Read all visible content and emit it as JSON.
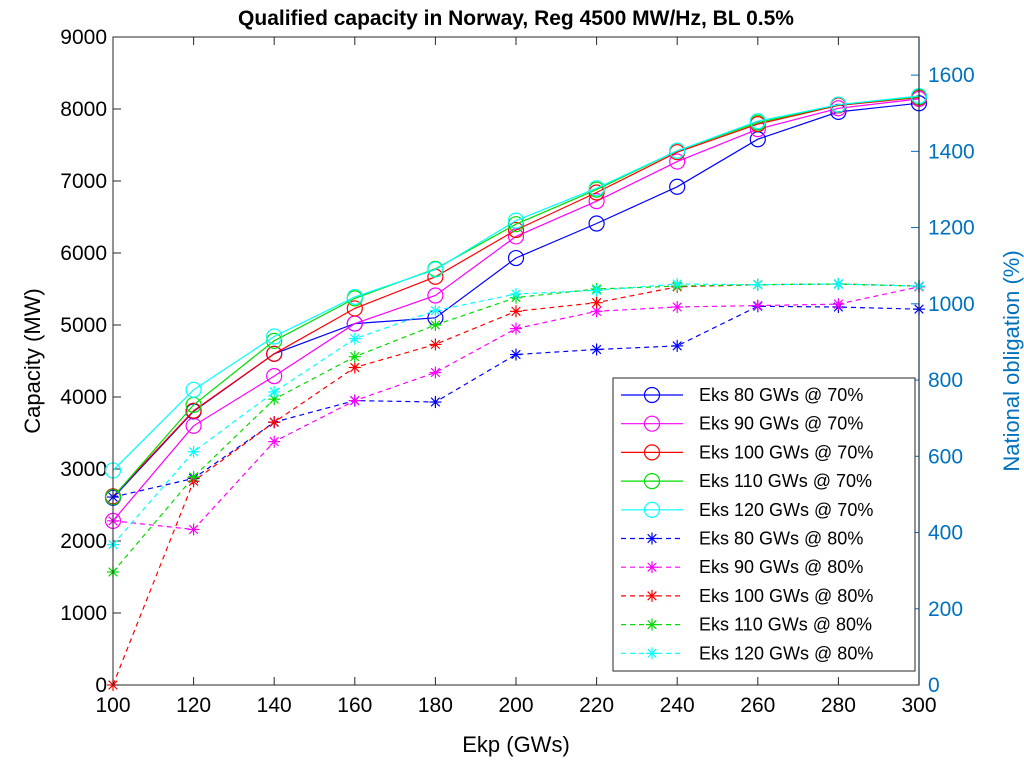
{
  "chart_data": {
    "type": "line",
    "title": "Qualified capacity in Norway, Reg 4500 MW/Hz, BL 0.5%",
    "xlabel": "Ekp (GWs)",
    "ylabel": "Capacity (MW)",
    "ylabel_right": "National obligation (%)",
    "xlim": [
      100,
      300
    ],
    "ylim": [
      0,
      9000
    ],
    "ylim_right": [
      0,
      1700
    ],
    "x_ticks": [
      "100",
      "120",
      "140",
      "160",
      "180",
      "200",
      "220",
      "240",
      "260",
      "280",
      "300"
    ],
    "y_ticks": [
      "0",
      "1000",
      "2000",
      "3000",
      "4000",
      "5000",
      "6000",
      "7000",
      "8000",
      "9000"
    ],
    "y_ticks_right": [
      "0",
      "200",
      "400",
      "600",
      "800",
      "1000",
      "1200",
      "1400",
      "1600"
    ],
    "legend_position": "inside-right",
    "grid": false,
    "x": [
      100,
      120,
      140,
      160,
      180,
      200,
      220,
      240,
      260,
      280,
      300
    ],
    "series": [
      {
        "name": "Eks 80 GWs @ 70%",
        "color": "#0000FF",
        "marker": "circle",
        "dashed": false,
        "axis": "left",
        "values": [
          2600,
          3800,
          4600,
          5020,
          5100,
          5930,
          6410,
          6920,
          7580,
          7960,
          8080
        ]
      },
      {
        "name": "Eks 90 GWs @ 70%",
        "color": "#FF00FF",
        "marker": "circle",
        "dashed": false,
        "axis": "left",
        "values": [
          2280,
          3600,
          4290,
          5020,
          5410,
          6230,
          6720,
          7270,
          7720,
          8010,
          8140
        ]
      },
      {
        "name": "Eks 100 GWs @ 70%",
        "color": "#FF0000",
        "marker": "circle",
        "dashed": false,
        "axis": "left",
        "values": [
          2620,
          3810,
          4600,
          5230,
          5670,
          6320,
          6840,
          7400,
          7790,
          8050,
          8160
        ]
      },
      {
        "name": "Eks 110 GWs @ 70%",
        "color": "#00DD00",
        "marker": "circle",
        "dashed": false,
        "axis": "left",
        "values": [
          2610,
          3890,
          4780,
          5370,
          5780,
          6400,
          6880,
          7420,
          7810,
          8060,
          8170
        ]
      },
      {
        "name": "Eks 120 GWs @ 70%",
        "color": "#00FFFF",
        "marker": "circle",
        "dashed": false,
        "axis": "left",
        "values": [
          2980,
          4100,
          4840,
          5390,
          5770,
          6450,
          6900,
          7420,
          7830,
          8060,
          8180
        ]
      },
      {
        "name": "Eks 80 GWs @ 80%",
        "color": "#0000FF",
        "marker": "asterisk",
        "dashed": true,
        "axis": "left",
        "values": [
          2610,
          2870,
          3650,
          3950,
          3930,
          4590,
          4660,
          4710,
          5260,
          5250,
          5220
        ]
      },
      {
        "name": "Eks 90 GWs @ 80%",
        "color": "#FF00FF",
        "marker": "asterisk",
        "dashed": true,
        "axis": "left",
        "values": [
          2280,
          2160,
          3380,
          3950,
          4340,
          4950,
          5190,
          5250,
          5270,
          5290,
          5530
        ]
      },
      {
        "name": "Eks 100 GWs @ 80%",
        "color": "#FF0000",
        "marker": "asterisk",
        "dashed": true,
        "axis": "left",
        "values": [
          0,
          2830,
          3650,
          4410,
          4730,
          5190,
          5310,
          5530,
          5560,
          5570,
          5540
        ]
      },
      {
        "name": "Eks 110 GWs @ 80%",
        "color": "#00DD00",
        "marker": "asterisk",
        "dashed": true,
        "axis": "left",
        "values": [
          1570,
          2890,
          3970,
          4560,
          5000,
          5380,
          5500,
          5540,
          5560,
          5570,
          5540
        ]
      },
      {
        "name": "Eks 120 GWs @ 80%",
        "color": "#00FFFF",
        "marker": "asterisk",
        "dashed": true,
        "axis": "left",
        "values": [
          1950,
          3240,
          4070,
          4810,
          5200,
          5430,
          5480,
          5570,
          5560,
          5570,
          5540
        ]
      }
    ]
  }
}
